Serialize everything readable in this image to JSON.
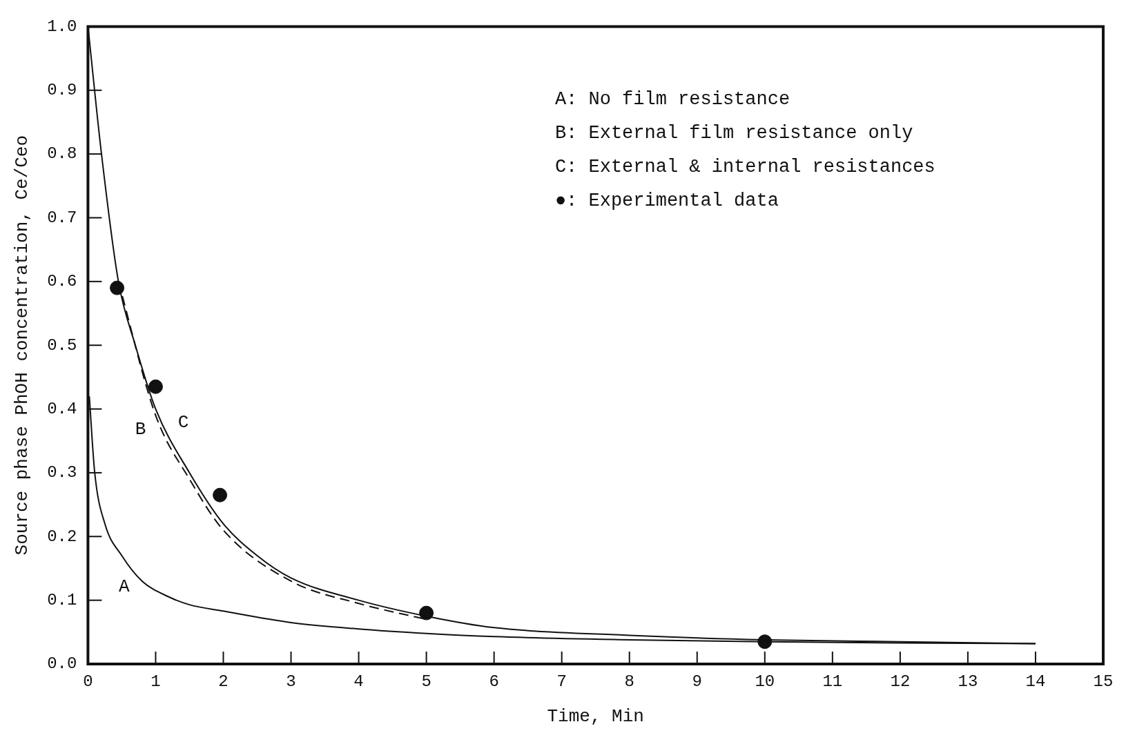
{
  "chart_data": {
    "type": "line",
    "xlabel": "Time, Min",
    "ylabel": "Source phase PhOH concentration, Ce/Ceo",
    "xlim": [
      0,
      15
    ],
    "xticks": [
      0,
      1,
      2,
      3,
      4,
      5,
      6,
      7,
      8,
      9,
      10,
      11,
      12,
      13,
      14,
      15
    ],
    "ylim": [
      0,
      1
    ],
    "yticks": [
      {
        "value": 0,
        "label": "0.0"
      },
      0.1,
      0.2,
      0.3,
      0.4,
      0.5,
      0.6,
      0.7,
      0.8,
      0.9,
      {
        "value": 1,
        "label": "1.0"
      }
    ],
    "grid": false,
    "marker": "none",
    "series": [
      {
        "name": "A",
        "color": "#111111",
        "line_style": "solid",
        "x": [
          0.02,
          0.1,
          0.25,
          0.5,
          0.8,
          1.2,
          1.5,
          2,
          3,
          4,
          5,
          6,
          8,
          10,
          12,
          14
        ],
        "values": [
          0.42,
          0.3,
          0.22,
          0.17,
          0.13,
          0.105,
          0.093,
          0.083,
          0.065,
          0.055,
          0.048,
          0.043,
          0.038,
          0.035,
          0.033,
          0.032
        ]
      },
      {
        "name": "B",
        "color": "#111111",
        "line_style": "dashed",
        "x": [
          0.45,
          1,
          1.5,
          2,
          3,
          4,
          5
        ],
        "values": [
          0.6,
          0.39,
          0.29,
          0.21,
          0.13,
          0.095,
          0.07
        ]
      },
      {
        "name": "C",
        "color": "#111111",
        "line_style": "solid",
        "x": [
          0,
          0.2,
          0.45,
          0.7,
          1,
          1.5,
          2,
          2.5,
          3,
          4,
          5,
          6,
          8,
          10,
          12,
          14
        ],
        "values": [
          1.0,
          0.8,
          0.6,
          0.5,
          0.4,
          0.3,
          0.22,
          0.17,
          0.135,
          0.1,
          0.075,
          0.057,
          0.045,
          0.038,
          0.035,
          0.032
        ]
      },
      {
        "type": "scatter",
        "marker": "circle",
        "color": "#111111",
        "x": [
          0.43,
          1,
          1.95,
          5,
          10
        ],
        "values": [
          0.59,
          0.435,
          0.265,
          0.08,
          0.035
        ]
      }
    ],
    "annotations": [
      "A: No film resistance",
      "B: External film resistance only",
      "C: External & internal resistances",
      "●: Experimental data"
    ]
  }
}
